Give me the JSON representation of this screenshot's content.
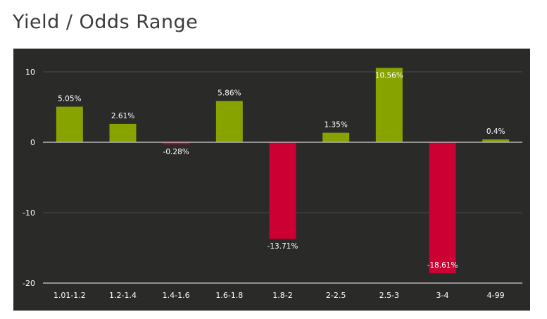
{
  "page": {
    "title": "Yield / Odds Range"
  },
  "colors": {
    "panel_background": "#2a2a28",
    "positive": "#86a300",
    "negative": "#cc0033",
    "grid": "#4a4a48",
    "zero_line": "#b5b5b5",
    "text": "#ffffff"
  },
  "chart_data": {
    "type": "bar",
    "title": "Yield / Odds Range",
    "xlabel": "",
    "ylabel": "",
    "categories": [
      "1.01-1.2",
      "1.2-1.4",
      "1.4-1.6",
      "1.6-1.8",
      "1.8-2",
      "2-2.5",
      "2.5-3",
      "3-4",
      "4-99"
    ],
    "values": [
      5.05,
      2.61,
      -0.28,
      5.86,
      -13.71,
      1.35,
      10.56,
      -18.61,
      0.4
    ],
    "data_labels": [
      "5.05%",
      "2.61%",
      "-0.28%",
      "5.86%",
      "-13.71%",
      "1.35%",
      "10.56%",
      "-18.61%",
      "0.4%"
    ],
    "ylim": [
      -20,
      10
    ],
    "yticks": [
      10,
      0,
      -10,
      -20
    ],
    "ytick_labels": [
      "10",
      "0",
      "-10",
      "-20"
    ],
    "grid": true,
    "legend": "none"
  }
}
